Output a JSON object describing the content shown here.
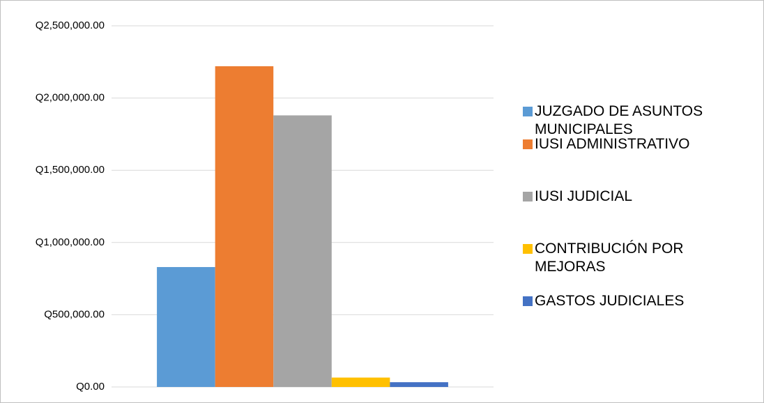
{
  "chart_data": {
    "type": "bar",
    "categories": [
      null
    ],
    "series": [
      {
        "name": "JUZGADO DE ASUNTOS MUNICIPALES",
        "color": "#5b9bd5",
        "values": [
          830000
        ]
      },
      {
        "name": "IUSI ADMINISTRATIVO",
        "color": "#ed7d31",
        "values": [
          2220000
        ]
      },
      {
        "name": "IUSI JUDICIAL",
        "color": "#a5a5a5",
        "values": [
          1880000
        ]
      },
      {
        "name": "CONTRIBUCIÓN POR MEJORAS",
        "color": "#ffc000",
        "values": [
          65000
        ]
      },
      {
        "name": "GASTOS JUDICIALES",
        "color": "#4472c4",
        "values": [
          33000
        ]
      }
    ],
    "ylim": [
      0,
      2500000
    ],
    "yticks": [
      {
        "value": 0,
        "label": "Q0.00"
      },
      {
        "value": 500000,
        "label": "Q500,000.00"
      },
      {
        "value": 1000000,
        "label": "Q1,000,000.00"
      },
      {
        "value": 1500000,
        "label": "Q1,500,000.00"
      },
      {
        "value": 2000000,
        "label": "Q2,000,000.00"
      },
      {
        "value": 2500000,
        "label": "Q2,500,000.00"
      }
    ],
    "grid": true,
    "legend": "right"
  }
}
